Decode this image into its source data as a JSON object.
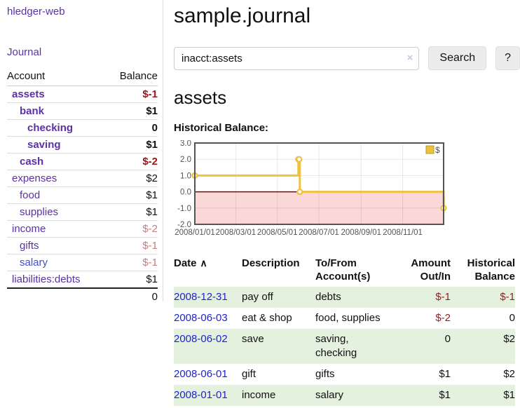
{
  "colors": {
    "purple": "#5b32a3",
    "link_blue": "#2121d1",
    "link_blue_alt": "#3a4fd9",
    "neg_strong": "#a31414",
    "neg_soft": "#c28080",
    "neg_table": "#942222",
    "text": "#111111",
    "row_green": "#e4f1df",
    "chart_gold": "#edc240",
    "chart_gold_border": "#b89b2e",
    "chart_pink": "#fad8d8",
    "zero_line": "#8b0000",
    "chart_border": "#545454"
  },
  "app": {
    "brand": "hledger-web",
    "nav_journal": "Journal"
  },
  "sidebar": {
    "header": {
      "account": "Account",
      "balance": "Balance"
    },
    "accounts": [
      {
        "label": "assets",
        "level": 0,
        "bold": true,
        "balance": "$-1",
        "balance_style": "neg_strong"
      },
      {
        "label": "bank",
        "level": 1,
        "bold": true,
        "balance": "$1",
        "balance_style": "normal"
      },
      {
        "label": "checking",
        "level": 2,
        "bold": true,
        "balance": "0",
        "balance_style": "normal"
      },
      {
        "label": "saving",
        "level": 2,
        "bold": true,
        "balance": "$1",
        "balance_style": "normal"
      },
      {
        "label": "cash",
        "level": 1,
        "bold": true,
        "balance": "$-2",
        "balance_style": "neg_strong"
      },
      {
        "label": "expenses",
        "level": 0,
        "bold": false,
        "balance": "$2",
        "balance_style": "normal"
      },
      {
        "label": "food",
        "level": 1,
        "bold": false,
        "balance": "$1",
        "balance_style": "normal"
      },
      {
        "label": "supplies",
        "level": 1,
        "bold": false,
        "balance": "$1",
        "balance_style": "normal"
      },
      {
        "label": "income",
        "level": 0,
        "bold": false,
        "balance": "$-2",
        "balance_style": "neg_soft"
      },
      {
        "label": "gifts",
        "level": 1,
        "bold": false,
        "balance": "$-1",
        "balance_style": "neg_soft"
      },
      {
        "label": "salary",
        "level": 1,
        "bold": false,
        "balance": "$-1",
        "balance_style": "neg_soft",
        "link_color": "blue"
      },
      {
        "label": "liabilities:debts",
        "level": 0,
        "bold": false,
        "balance": "$1",
        "balance_style": "normal"
      }
    ],
    "total": "0"
  },
  "main": {
    "title": "sample.journal",
    "search": {
      "value": "inacct:assets",
      "clear_icon": "×",
      "search_label": "Search",
      "help_label": "?"
    },
    "account_heading": "assets",
    "chart_heading": "Historical Balance:"
  },
  "chart_data": {
    "type": "line",
    "step": true,
    "title": "Historical Balance",
    "series": [
      {
        "name": "$",
        "color": "#edc240",
        "points": [
          [
            "2008-01-01",
            1
          ],
          [
            "2008-06-01",
            2
          ],
          [
            "2008-06-02",
            2
          ],
          [
            "2008-06-03",
            0
          ],
          [
            "2008-12-31",
            -1
          ]
        ]
      }
    ],
    "x_range": [
      "2008-01-01",
      "2008-12-31"
    ],
    "x_ticks": [
      "2008/01/01",
      "2008/03/01",
      "2008/05/01",
      "2008/07/01",
      "2008/09/01",
      "2008/11/01"
    ],
    "y_ticks": [
      3.0,
      2.0,
      1.0,
      0.0,
      -1.0,
      -2.0
    ],
    "ylim": [
      -2,
      3
    ],
    "legend_position": "top-right",
    "grid": true,
    "negative_region": true
  },
  "register": {
    "columns": {
      "date": "Date",
      "sort_icon": "∧",
      "description": "Description",
      "accounts": "To/From Account(s)",
      "amount": "Amount Out/In",
      "balance": "Historical Balance"
    },
    "rows": [
      {
        "date": "2008-12-31",
        "description": "pay off",
        "accounts": "debts",
        "amount": "$-1",
        "amount_neg": true,
        "balance": "$-1",
        "balance_neg": true,
        "stripe": true
      },
      {
        "date": "2008-06-03",
        "description": "eat & shop",
        "accounts": "food, supplies",
        "amount": "$-2",
        "amount_neg": true,
        "balance": "0",
        "balance_neg": false,
        "stripe": false
      },
      {
        "date": "2008-06-02",
        "description": "save",
        "accounts": "saving, checking",
        "amount": "0",
        "amount_neg": false,
        "balance": "$2",
        "balance_neg": false,
        "stripe": true
      },
      {
        "date": "2008-06-01",
        "description": "gift",
        "accounts": "gifts",
        "amount": "$1",
        "amount_neg": false,
        "balance": "$2",
        "balance_neg": false,
        "stripe": false
      },
      {
        "date": "2008-01-01",
        "description": "income",
        "accounts": "salary",
        "amount": "$1",
        "amount_neg": false,
        "balance": "$1",
        "balance_neg": false,
        "stripe": true
      }
    ]
  }
}
